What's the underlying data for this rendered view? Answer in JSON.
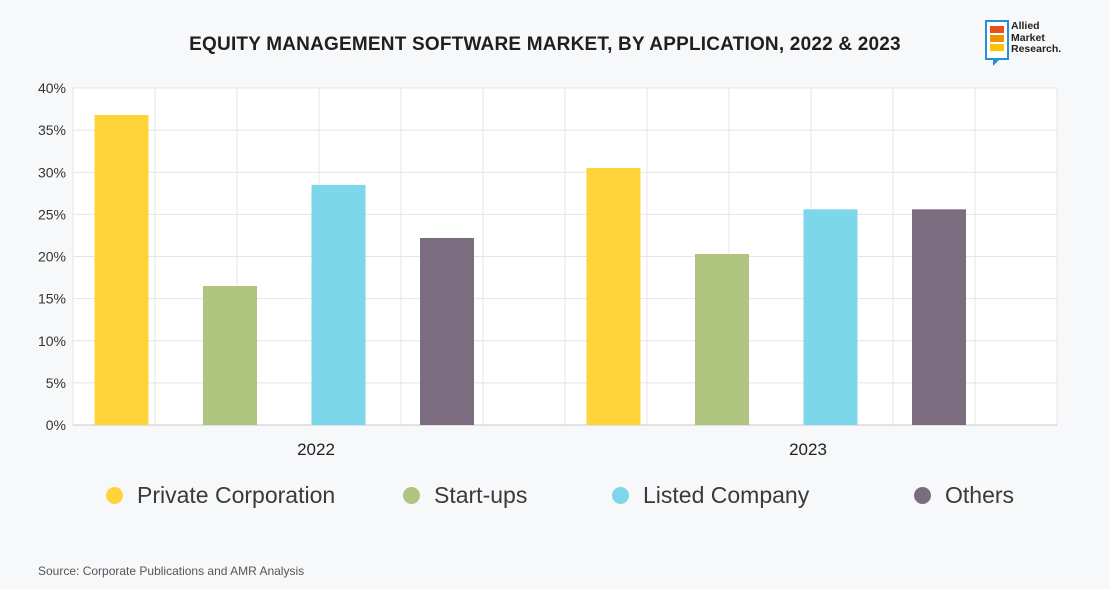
{
  "header": {
    "title": "EQUITY MANAGEMENT SOFTWARE MARKET, BY APPLICATION, 2022 & 2023"
  },
  "logo": {
    "lines": [
      "Allied",
      "Market",
      "Research."
    ]
  },
  "source": "Source: Corporate Publications and AMR Analysis",
  "chart_data": {
    "type": "bar",
    "title": "EQUITY MANAGEMENT SOFTWARE MARKET, BY APPLICATION, 2022 & 2023",
    "xlabel": "",
    "ylabel": "",
    "categories": [
      "2022",
      "2023"
    ],
    "y_ticks": [
      "0%",
      "5%",
      "10%",
      "15%",
      "20%",
      "25%",
      "30%",
      "35%",
      "40%"
    ],
    "ylim": [
      0,
      40
    ],
    "unit": "%",
    "grid": true,
    "legend_position": "bottom",
    "series": [
      {
        "name": "Private Corporation",
        "color": "#ffd43b",
        "values": [
          36.8,
          30.5
        ]
      },
      {
        "name": "Start-ups",
        "color": "#afc47f",
        "values": [
          16.5,
          20.3
        ]
      },
      {
        "name": "Listed Company",
        "color": "#7ed6ea",
        "values": [
          28.5,
          25.6
        ]
      },
      {
        "name": "Others",
        "color": "#7b6c80",
        "values": [
          22.2,
          25.6
        ]
      }
    ]
  }
}
